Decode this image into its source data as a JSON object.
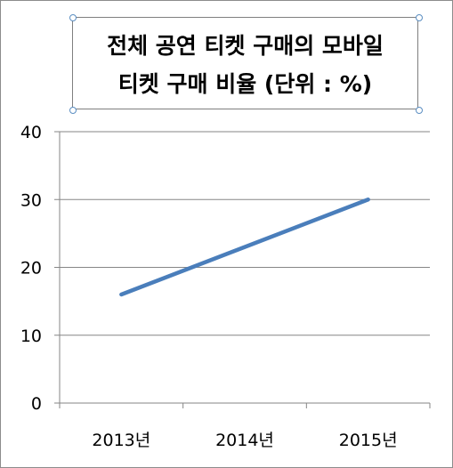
{
  "chart_data": {
    "type": "line",
    "title_lines": [
      "전체 공연 티켓 구매의 모바일",
      "티켓 구매 비율 (단위 : %)"
    ],
    "categories": [
      "2013년",
      "2014년",
      "2015년"
    ],
    "series": [
      {
        "values": [
          16,
          23,
          30
        ],
        "color": "#4a7ebb"
      }
    ],
    "ylim": [
      0,
      40
    ],
    "yticks": [
      "0",
      "10",
      "20",
      "30",
      "40"
    ],
    "grid": true,
    "gridline_color": "#868686",
    "legend": "none"
  }
}
